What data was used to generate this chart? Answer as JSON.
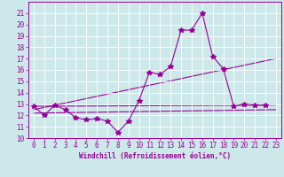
{
  "bg_color": "#cce8e8",
  "line_color": "#990099",
  "xlim": [
    -0.5,
    23.5
  ],
  "ylim": [
    10,
    22
  ],
  "yticks": [
    10,
    11,
    12,
    13,
    14,
    15,
    16,
    17,
    18,
    19,
    20,
    21
  ],
  "xticks": [
    0,
    1,
    2,
    3,
    4,
    5,
    6,
    7,
    8,
    9,
    10,
    11,
    12,
    13,
    14,
    15,
    16,
    17,
    18,
    19,
    20,
    21,
    22,
    23
  ],
  "series1_x": [
    0,
    1,
    2,
    3,
    4,
    5,
    6,
    7,
    8,
    9,
    10,
    11,
    12,
    13,
    14,
    15,
    16,
    17,
    18,
    19,
    20,
    21,
    22
  ],
  "series1_y": [
    12.8,
    12.0,
    12.9,
    12.5,
    11.8,
    11.6,
    11.7,
    11.5,
    10.5,
    11.5,
    13.3,
    15.8,
    15.6,
    16.3,
    19.5,
    19.5,
    21.0,
    17.2,
    16.1,
    12.8,
    13.0,
    12.9,
    12.9
  ],
  "trend1_x": [
    0,
    23
  ],
  "trend1_y": [
    12.8,
    12.9
  ],
  "trend2_x": [
    0,
    23
  ],
  "trend2_y": [
    12.5,
    17.0
  ],
  "trend3_x": [
    0,
    23
  ],
  "trend3_y": [
    12.2,
    12.5
  ],
  "xlabel": "Windchill (Refroidissement éolien,°C)",
  "tick_fontsize": 5.5,
  "xlabel_fontsize": 5.5
}
